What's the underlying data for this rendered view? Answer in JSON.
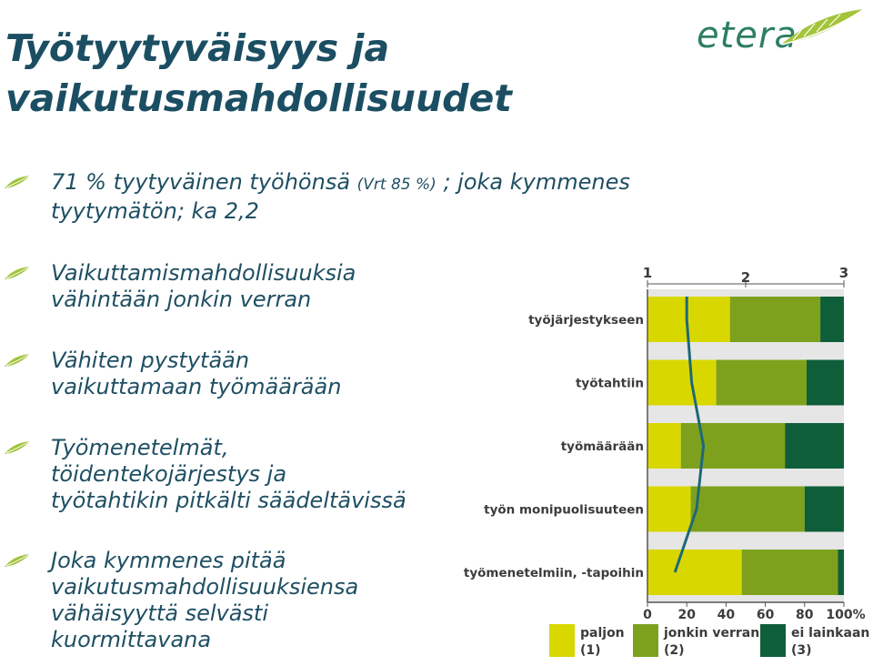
{
  "title": {
    "line1": "Työtyytyväisyys ja",
    "line2": "vaikutusmahdollisuudet"
  },
  "logo": {
    "text": "etera"
  },
  "bullets": [
    {
      "parts": [
        "71 % tyytyväinen työhönsä ",
        "(Vrt 85 %)",
        " ;  joka kymmenes"
      ],
      "line2": "tyytymätön; ka 2,2"
    },
    {
      "lines": [
        "Vaikuttamismahdollisuuksia",
        "vähintään jonkin verran"
      ]
    },
    {
      "lines": [
        "Vähiten pystytään",
        "vaikuttamaan työmäärään"
      ]
    },
    {
      "lines": [
        "Työmenetelmät,",
        "töidentekojärjestys ja",
        "työtahtikin pitkälti säädeltävissä"
      ]
    },
    {
      "lines": [
        "Joka kymmenes pitää",
        "vaikutusmahdollisuuksiensa",
        "vähäisyyttä selvästi",
        "kuormittavana"
      ]
    }
  ],
  "colors": {
    "paljon": "#d8d800",
    "jonkin_verran": "#7ea11d",
    "ei_lainkaan": "#0f5e3a",
    "mean_line": "#1e6878",
    "title": "#1b4e62"
  },
  "chart_data": {
    "type": "bar",
    "stacked": true,
    "orientation": "horizontal",
    "categories": [
      "työjärjestykseen",
      "työtahtiin",
      "työmäärään",
      "työn monipuolisuuteen",
      "työmenetelmiin, -tapoihin"
    ],
    "series": [
      {
        "name": "paljon",
        "code": "(1)",
        "values": [
          42,
          35,
          17,
          22,
          48
        ]
      },
      {
        "name": "jonkin verran",
        "code": "(2)",
        "values": [
          46,
          46,
          53,
          58,
          49
        ]
      },
      {
        "name": "ei lainkaan",
        "code": "(3)",
        "values": [
          12,
          19,
          30,
          20,
          3
        ]
      }
    ],
    "mean_line": {
      "values": [
        1.4,
        1.45,
        1.57,
        1.5,
        1.28
      ],
      "scale_ticks": [
        "1",
        "2",
        "3"
      ],
      "scale_range": [
        1,
        3
      ]
    },
    "x_ticks": [
      "0",
      "20",
      "40",
      "60",
      "80",
      "100%"
    ],
    "xlim": [
      0,
      100
    ]
  }
}
